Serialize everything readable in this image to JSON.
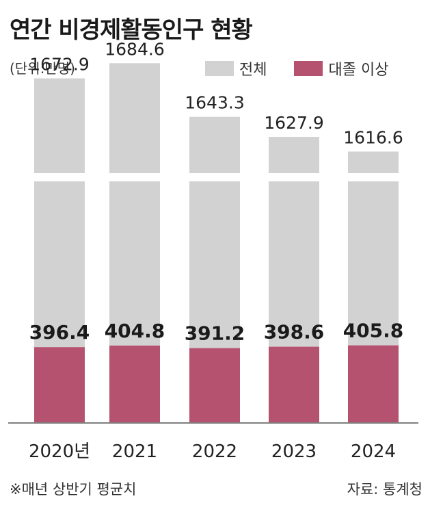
{
  "chart_data": {
    "type": "bar",
    "title": "연간 비경제활동인구 현황",
    "unit_label": "(단위:만명)",
    "categories": [
      "2020년",
      "2021",
      "2022",
      "2023",
      "2024"
    ],
    "series": [
      {
        "name": "전체",
        "values": [
          1672.9,
          1684.6,
          1643.3,
          1627.9,
          1616.6
        ],
        "color": "#d2d2d2"
      },
      {
        "name": "대졸 이상",
        "values": [
          396.4,
          404.8,
          391.2,
          398.6,
          405.8
        ],
        "color": "#b5526f"
      }
    ],
    "value_labels_total": [
      "1672.9",
      "1684.6",
      "1643.3",
      "1627.9",
      "1616.6"
    ],
    "value_labels_college": [
      "396.4",
      "404.8",
      "391.2",
      "398.6",
      "405.8"
    ],
    "axis_break": true,
    "legend_position": "top-right",
    "grid": false
  },
  "footer": {
    "note": "※매년 상반기 평균치",
    "source": "자료: 통계청"
  }
}
